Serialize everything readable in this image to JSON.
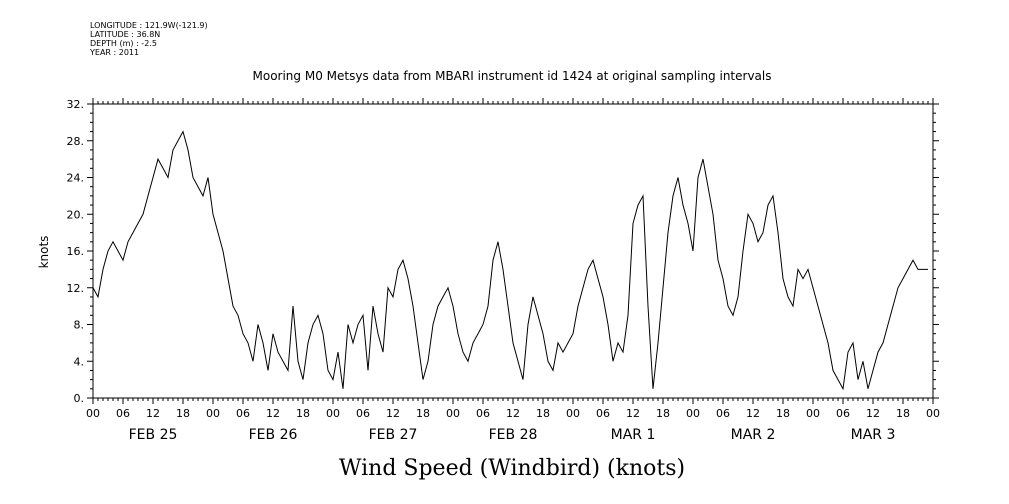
{
  "meta": {
    "longitude": "LONGITUDE : 121.9W(-121.9)",
    "latitude": "LATITUDE : 36.8N",
    "depth": "DEPTH (m) : -2.5",
    "year": "YEAR : 2011"
  },
  "chart_data": {
    "type": "line",
    "title": "Mooring M0 Metsys data from MBARI instrument id 1424 at original sampling intervals",
    "xlabel": "Wind Speed (Windbird) (knots)",
    "ylabel": "knots",
    "ylim": [
      0,
      32
    ],
    "yticks": [
      0,
      4,
      8,
      12,
      16,
      20,
      24,
      28,
      32
    ],
    "ytick_labels": [
      "0.",
      "4.",
      "8.",
      "12.",
      "16.",
      "20.",
      "24.",
      "28.",
      "32."
    ],
    "xlim_hours": [
      0,
      168
    ],
    "hour_ticks": [
      "00",
      "06",
      "12",
      "18",
      "00",
      "06",
      "12",
      "18",
      "00",
      "06",
      "12",
      "18",
      "00",
      "06",
      "12",
      "18",
      "00",
      "06",
      "12",
      "18",
      "00",
      "06",
      "12",
      "18",
      "00",
      "06",
      "12",
      "18",
      "00"
    ],
    "day_labels": [
      "FEB 25",
      "FEB 26",
      "FEB 27",
      "FEB 28",
      "MAR  1",
      "MAR  2",
      "MAR  3"
    ],
    "grid": false,
    "series": [
      {
        "x": [
          0,
          1,
          2,
          3,
          4,
          5,
          6,
          7,
          8,
          9,
          10,
          11,
          12,
          13,
          14,
          15,
          16,
          17,
          18,
          19,
          20,
          21,
          22,
          23,
          24,
          25,
          26,
          27,
          28,
          29,
          30,
          31,
          32,
          33,
          34,
          35,
          36,
          37,
          38,
          39,
          40,
          41,
          42,
          43,
          44,
          45,
          46,
          47,
          48,
          49,
          50,
          51,
          52,
          53,
          54,
          55,
          56,
          57,
          58,
          59,
          60,
          61,
          62,
          63,
          64,
          65,
          66,
          67,
          68,
          69,
          70,
          71,
          72,
          73,
          74,
          75,
          76,
          77,
          78,
          79,
          80,
          81,
          82,
          83,
          84,
          85,
          86,
          87,
          88,
          89,
          90,
          91,
          92,
          93,
          94,
          95,
          96,
          97,
          98,
          99,
          100,
          101,
          102,
          103,
          104,
          105,
          106,
          107,
          108,
          109,
          110,
          111,
          112,
          113,
          114,
          115,
          116,
          117,
          118,
          119,
          120,
          121,
          122,
          123,
          124,
          125,
          126,
          127,
          128,
          129,
          130,
          131,
          132,
          133,
          134,
          135,
          136,
          137,
          138,
          139,
          140,
          141,
          142,
          143,
          144,
          145,
          146,
          147,
          148,
          149,
          150,
          151,
          152,
          153,
          154,
          155,
          156,
          157,
          158,
          159,
          160,
          161,
          162,
          163,
          164,
          165,
          166,
          167
        ],
        "y": [
          12,
          11,
          14,
          16,
          17,
          16,
          15,
          17,
          18,
          19,
          20,
          22,
          24,
          26,
          25,
          24,
          27,
          28,
          29,
          27,
          24,
          23,
          22,
          24,
          20,
          18,
          16,
          13,
          10,
          9,
          7,
          6,
          4,
          8,
          6,
          3,
          7,
          5,
          4,
          3,
          10,
          4,
          2,
          6,
          8,
          9,
          7,
          3,
          2,
          5,
          1,
          8,
          6,
          8,
          9,
          3,
          10,
          7,
          5,
          12,
          11,
          14,
          15,
          13,
          10,
          6,
          2,
          4,
          8,
          10,
          11,
          12,
          10,
          7,
          5,
          4,
          6,
          7,
          8,
          10,
          15,
          17,
          14,
          10,
          6,
          4,
          2,
          8,
          11,
          9,
          7,
          4,
          3,
          6,
          5,
          6,
          7,
          10,
          12,
          14,
          15,
          13,
          11,
          8,
          4,
          6,
          5,
          9,
          19,
          21,
          22,
          10,
          1,
          6,
          12,
          18,
          22,
          24,
          21,
          19,
          16,
          24,
          26,
          23,
          20,
          15,
          13,
          10,
          9,
          11,
          16,
          20,
          19,
          17,
          18,
          21,
          22,
          18,
          13,
          11,
          10,
          14,
          13,
          14,
          12,
          10,
          8,
          6,
          3,
          2,
          1,
          5,
          6,
          2,
          4,
          1,
          3,
          5,
          6,
          8,
          10,
          12,
          13,
          14,
          15,
          14,
          14,
          14
        ]
      }
    ]
  }
}
